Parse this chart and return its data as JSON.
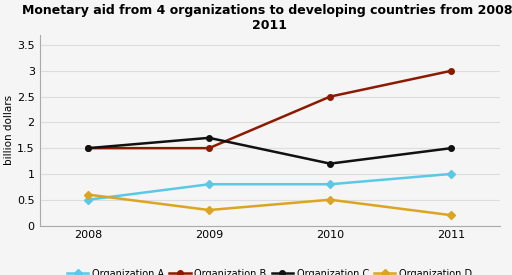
{
  "title": "Monetary aid from 4 organizations to developing countries from 2008-\n2011",
  "ylabel": "billion dollars",
  "years": [
    2008,
    2009,
    2010,
    2011
  ],
  "series": [
    {
      "label": "Organization A",
      "values": [
        0.5,
        0.8,
        0.8,
        1.0
      ],
      "color": "#5bc8e8",
      "marker": "D",
      "linewidth": 1.8,
      "markersize": 4
    },
    {
      "label": "Organization B",
      "values": [
        1.5,
        1.5,
        2.5,
        3.0
      ],
      "color": "#8B1A00",
      "marker": "o",
      "linewidth": 1.8,
      "markersize": 4
    },
    {
      "label": "Organization C",
      "values": [
        1.5,
        1.7,
        1.2,
        1.5
      ],
      "color": "#111111",
      "marker": "o",
      "linewidth": 1.8,
      "markersize": 4
    },
    {
      "label": "Organization D",
      "values": [
        0.6,
        0.3,
        0.5,
        0.2
      ],
      "color": "#DAA520",
      "marker": "D",
      "linewidth": 1.8,
      "markersize": 4
    }
  ],
  "xlim": [
    2007.6,
    2011.4
  ],
  "ylim": [
    0,
    3.7
  ],
  "yticks": [
    0,
    0.5,
    1.0,
    1.5,
    2.0,
    2.5,
    3.0,
    3.5
  ],
  "ytick_labels": [
    "0",
    "0.5",
    "1",
    "1.5",
    "2",
    "2.5",
    "3",
    "3.5"
  ],
  "xticks": [
    2008,
    2009,
    2010,
    2011
  ],
  "background_color": "#f5f5f5",
  "plot_bg_color": "#f5f5f5",
  "grid_color": "#dddddd",
  "title_fontsize": 9,
  "label_fontsize": 7.5,
  "tick_fontsize": 8,
  "legend_fontsize": 7
}
